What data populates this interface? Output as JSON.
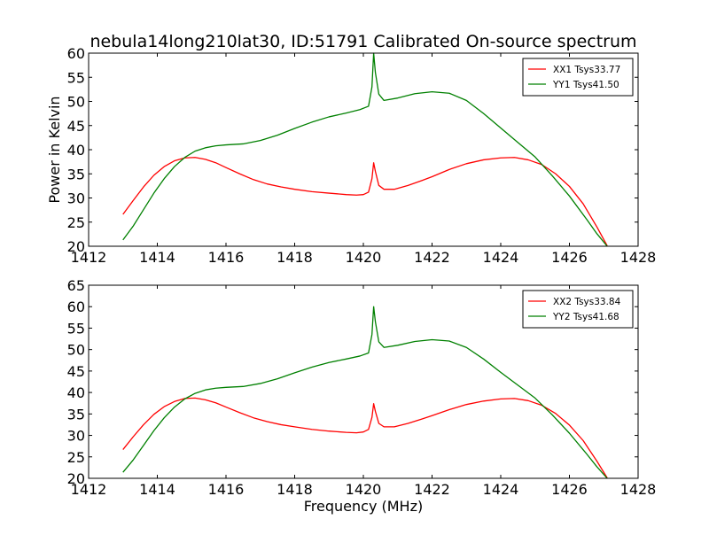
{
  "title": "nebula14long210lat30, ID:51791 Calibrated On-source spectrum",
  "colors": {
    "xx": "#ff0000",
    "yy": "#008000"
  },
  "chart_data": [
    {
      "type": "line",
      "xlabel": "",
      "ylabel": "Power in Kelvin",
      "xlim": [
        1412,
        1428
      ],
      "ylim": [
        20,
        60
      ],
      "xticks": [
        "1412",
        "1414",
        "1416",
        "1418",
        "1420",
        "1422",
        "1424",
        "1426",
        "1428"
      ],
      "yticks": [
        "20",
        "25",
        "30",
        "35",
        "40",
        "45",
        "50",
        "55",
        "60"
      ],
      "legend": "top-right",
      "series": [
        {
          "name": "XX1 Tsys33.77",
          "color": "#ff0000",
          "points": [
            [
              1413.0,
              26.6
            ],
            [
              1413.3,
              29.5
            ],
            [
              1413.6,
              32.3
            ],
            [
              1413.9,
              34.7
            ],
            [
              1414.2,
              36.5
            ],
            [
              1414.5,
              37.7
            ],
            [
              1414.8,
              38.3
            ],
            [
              1415.1,
              38.4
            ],
            [
              1415.4,
              38.0
            ],
            [
              1415.7,
              37.3
            ],
            [
              1416.0,
              36.3
            ],
            [
              1416.4,
              35.0
            ],
            [
              1416.8,
              33.8
            ],
            [
              1417.2,
              32.9
            ],
            [
              1417.6,
              32.3
            ],
            [
              1418.0,
              31.8
            ],
            [
              1418.5,
              31.3
            ],
            [
              1419.0,
              31.0
            ],
            [
              1419.5,
              30.7
            ],
            [
              1419.8,
              30.6
            ],
            [
              1420.0,
              30.7
            ],
            [
              1420.15,
              31.2
            ],
            [
              1420.25,
              34.0
            ],
            [
              1420.3,
              37.3
            ],
            [
              1420.35,
              35.5
            ],
            [
              1420.45,
              32.6
            ],
            [
              1420.6,
              31.8
            ],
            [
              1420.9,
              31.8
            ],
            [
              1421.3,
              32.6
            ],
            [
              1421.7,
              33.6
            ],
            [
              1422.0,
              34.4
            ],
            [
              1422.5,
              35.9
            ],
            [
              1423.0,
              37.1
            ],
            [
              1423.5,
              37.9
            ],
            [
              1424.0,
              38.3
            ],
            [
              1424.4,
              38.4
            ],
            [
              1424.8,
              37.9
            ],
            [
              1425.2,
              36.9
            ],
            [
              1425.6,
              35.0
            ],
            [
              1426.0,
              32.4
            ],
            [
              1426.4,
              28.8
            ],
            [
              1426.8,
              24.0
            ],
            [
              1427.1,
              20.1
            ]
          ]
        },
        {
          "name": "YY1 Tsys41.50",
          "color": "#008000",
          "points": [
            [
              1413.0,
              21.3
            ],
            [
              1413.3,
              24.2
            ],
            [
              1413.6,
              27.6
            ],
            [
              1413.9,
              31.0
            ],
            [
              1414.2,
              34.0
            ],
            [
              1414.5,
              36.5
            ],
            [
              1414.8,
              38.4
            ],
            [
              1415.1,
              39.7
            ],
            [
              1415.4,
              40.4
            ],
            [
              1415.7,
              40.8
            ],
            [
              1416.0,
              41.0
            ],
            [
              1416.5,
              41.2
            ],
            [
              1417.0,
              41.9
            ],
            [
              1417.5,
              43.0
            ],
            [
              1418.0,
              44.4
            ],
            [
              1418.5,
              45.7
            ],
            [
              1419.0,
              46.8
            ],
            [
              1419.5,
              47.6
            ],
            [
              1419.9,
              48.3
            ],
            [
              1420.15,
              49.0
            ],
            [
              1420.25,
              53.0
            ],
            [
              1420.3,
              60.0
            ],
            [
              1420.35,
              56.0
            ],
            [
              1420.45,
              51.5
            ],
            [
              1420.6,
              50.2
            ],
            [
              1421.0,
              50.7
            ],
            [
              1421.5,
              51.6
            ],
            [
              1422.0,
              52.0
            ],
            [
              1422.5,
              51.7
            ],
            [
              1423.0,
              50.2
            ],
            [
              1423.5,
              47.5
            ],
            [
              1424.0,
              44.5
            ],
            [
              1424.5,
              41.5
            ],
            [
              1425.0,
              38.5
            ],
            [
              1425.5,
              34.6
            ],
            [
              1426.0,
              30.4
            ],
            [
              1426.5,
              25.6
            ],
            [
              1426.8,
              22.6
            ],
            [
              1427.1,
              20.0
            ]
          ]
        }
      ]
    },
    {
      "type": "line",
      "xlabel": "Frequency (MHz)",
      "ylabel": "",
      "xlim": [
        1412,
        1428
      ],
      "ylim": [
        20,
        65
      ],
      "xticks": [
        "1412",
        "1414",
        "1416",
        "1418",
        "1420",
        "1422",
        "1424",
        "1426",
        "1428"
      ],
      "yticks": [
        "20",
        "25",
        "30",
        "35",
        "40",
        "45",
        "50",
        "55",
        "60",
        "65"
      ],
      "legend": "top-right",
      "series": [
        {
          "name": "XX2 Tsys33.84",
          "color": "#ff0000",
          "points": [
            [
              1413.0,
              26.7
            ],
            [
              1413.3,
              29.7
            ],
            [
              1413.6,
              32.5
            ],
            [
              1413.9,
              34.9
            ],
            [
              1414.2,
              36.7
            ],
            [
              1414.5,
              37.9
            ],
            [
              1414.8,
              38.6
            ],
            [
              1415.1,
              38.7
            ],
            [
              1415.4,
              38.3
            ],
            [
              1415.7,
              37.6
            ],
            [
              1416.0,
              36.6
            ],
            [
              1416.4,
              35.3
            ],
            [
              1416.8,
              34.1
            ],
            [
              1417.2,
              33.2
            ],
            [
              1417.6,
              32.5
            ],
            [
              1418.0,
              32.0
            ],
            [
              1418.5,
              31.4
            ],
            [
              1419.0,
              31.0
            ],
            [
              1419.5,
              30.7
            ],
            [
              1419.8,
              30.6
            ],
            [
              1420.0,
              30.8
            ],
            [
              1420.15,
              31.4
            ],
            [
              1420.25,
              34.2
            ],
            [
              1420.3,
              37.4
            ],
            [
              1420.35,
              35.6
            ],
            [
              1420.45,
              32.8
            ],
            [
              1420.6,
              32.0
            ],
            [
              1420.9,
              32.0
            ],
            [
              1421.3,
              32.8
            ],
            [
              1421.7,
              33.8
            ],
            [
              1422.0,
              34.6
            ],
            [
              1422.5,
              36.0
            ],
            [
              1423.0,
              37.2
            ],
            [
              1423.5,
              38.0
            ],
            [
              1424.0,
              38.5
            ],
            [
              1424.4,
              38.6
            ],
            [
              1424.8,
              38.1
            ],
            [
              1425.2,
              37.0
            ],
            [
              1425.6,
              35.1
            ],
            [
              1426.0,
              32.4
            ],
            [
              1426.4,
              28.8
            ],
            [
              1426.8,
              24.0
            ],
            [
              1427.1,
              20.1
            ]
          ]
        },
        {
          "name": "YY2 Tsys41.68",
          "color": "#008000",
          "points": [
            [
              1413.0,
              21.4
            ],
            [
              1413.3,
              24.3
            ],
            [
              1413.6,
              27.7
            ],
            [
              1413.9,
              31.1
            ],
            [
              1414.2,
              34.1
            ],
            [
              1414.5,
              36.6
            ],
            [
              1414.8,
              38.5
            ],
            [
              1415.1,
              39.8
            ],
            [
              1415.4,
              40.6
            ],
            [
              1415.7,
              41.0
            ],
            [
              1416.0,
              41.2
            ],
            [
              1416.5,
              41.4
            ],
            [
              1417.0,
              42.1
            ],
            [
              1417.5,
              43.2
            ],
            [
              1418.0,
              44.6
            ],
            [
              1418.5,
              45.9
            ],
            [
              1419.0,
              47.0
            ],
            [
              1419.5,
              47.8
            ],
            [
              1419.9,
              48.5
            ],
            [
              1420.15,
              49.2
            ],
            [
              1420.25,
              53.5
            ],
            [
              1420.3,
              60.0
            ],
            [
              1420.35,
              56.5
            ],
            [
              1420.45,
              51.8
            ],
            [
              1420.6,
              50.5
            ],
            [
              1421.0,
              51.0
            ],
            [
              1421.5,
              51.9
            ],
            [
              1422.0,
              52.3
            ],
            [
              1422.5,
              52.0
            ],
            [
              1423.0,
              50.5
            ],
            [
              1423.5,
              47.8
            ],
            [
              1424.0,
              44.7
            ],
            [
              1424.5,
              41.7
            ],
            [
              1425.0,
              38.7
            ],
            [
              1425.5,
              34.8
            ],
            [
              1426.0,
              30.5
            ],
            [
              1426.5,
              25.7
            ],
            [
              1426.8,
              22.7
            ],
            [
              1427.1,
              20.0
            ]
          ]
        }
      ]
    }
  ]
}
